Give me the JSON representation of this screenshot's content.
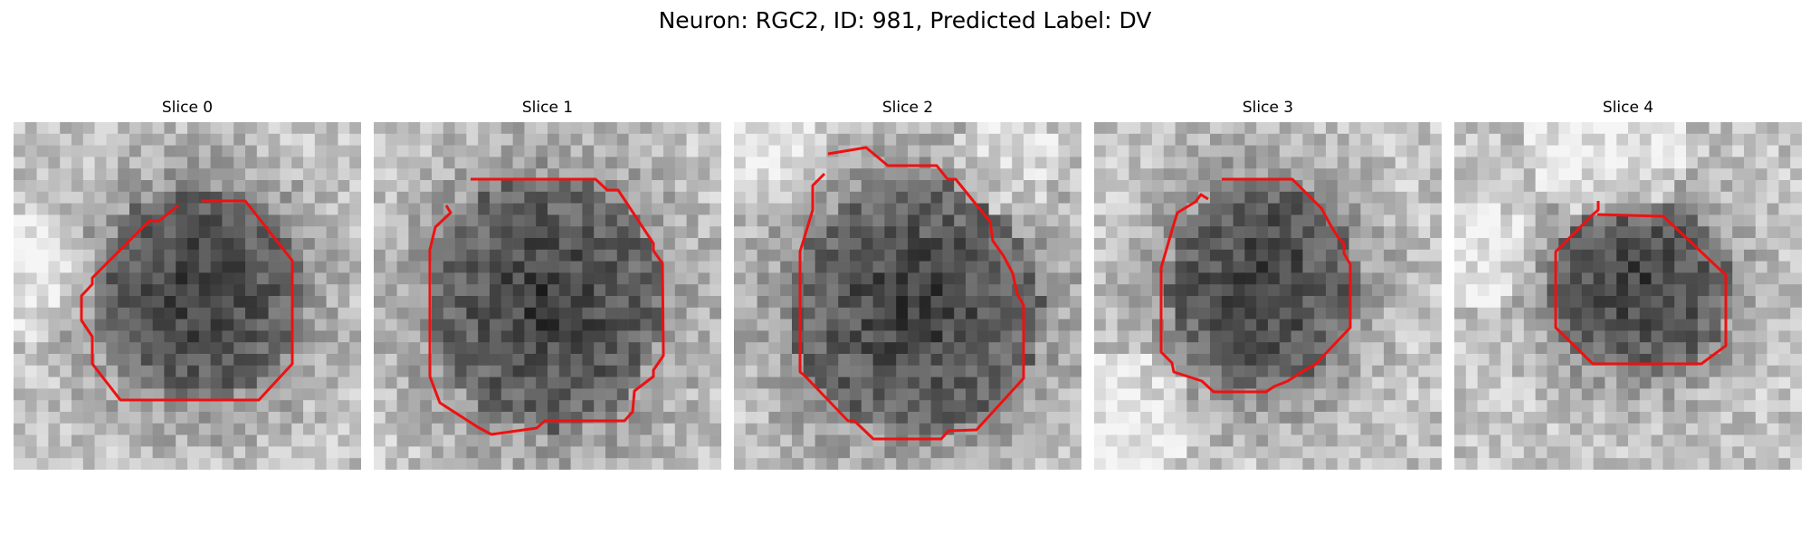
{
  "figure": {
    "title": "Neuron: RGC2, ID: 981, Predicted Label: DV"
  },
  "panels": [
    {
      "title": "Slice 0"
    },
    {
      "title": "Slice 1"
    },
    {
      "title": "Slice 2"
    },
    {
      "title": "Slice 3"
    },
    {
      "title": "Slice 4"
    }
  ],
  "colors": {
    "contour": "#ee1111",
    "background": "#ffffff"
  }
}
